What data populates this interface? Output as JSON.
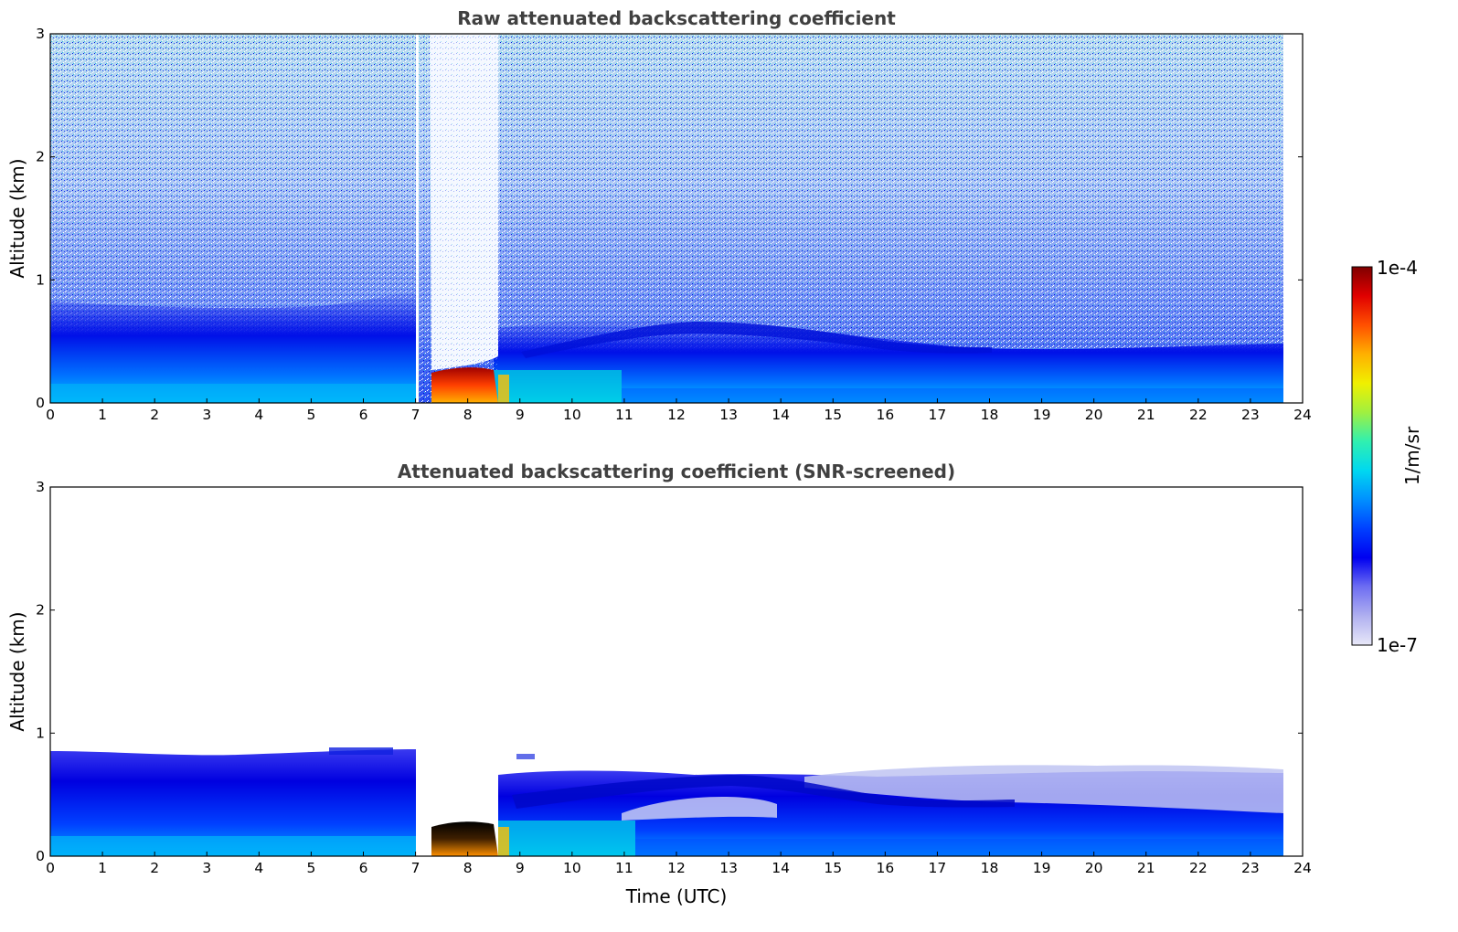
{
  "chart_data": [
    {
      "type": "heatmap",
      "title": "Raw attenuated backscattering coefficient",
      "xlabel": "",
      "ylabel": "Altitude (km)",
      "xlim": [
        0,
        24
      ],
      "ylim": [
        0,
        3
      ],
      "xticks": [
        0,
        1,
        2,
        3,
        4,
        5,
        6,
        7,
        8,
        9,
        10,
        11,
        12,
        13,
        14,
        15,
        16,
        17,
        18,
        19,
        20,
        21,
        22,
        23,
        24
      ],
      "yticks": [
        0,
        1,
        2,
        3
      ],
      "data_end_time": 23.6,
      "features": [
        {
          "name": "boundary-layer aerosol",
          "time_range": [
            0,
            23.6
          ],
          "altitude_top_km": 0.45
        },
        {
          "name": "fog/cloud layer",
          "time_range": [
            7.3,
            8.6
          ],
          "altitude_range_km": [
            0.0,
            0.27
          ]
        },
        {
          "name": "elevated aerosol layer",
          "time_range": [
            9.5,
            18.3
          ],
          "altitude_range_km": [
            0.3,
            0.65
          ]
        },
        {
          "name": "data gap",
          "time": 7.05
        }
      ]
    },
    {
      "type": "heatmap",
      "title": "Attenuated backscattering coefficient (SNR-screened)",
      "xlabel": "Time (UTC)",
      "ylabel": "Altitude (km)",
      "xlim": [
        0,
        24
      ],
      "ylim": [
        0,
        3
      ],
      "xticks": [
        0,
        1,
        2,
        3,
        4,
        5,
        6,
        7,
        8,
        9,
        10,
        11,
        12,
        13,
        14,
        15,
        16,
        17,
        18,
        19,
        20,
        21,
        22,
        23,
        24
      ],
      "yticks": [
        0,
        1,
        2,
        3
      ],
      "data_end_time": 23.6,
      "screened_top_km": 0.85
    }
  ],
  "colorbar": {
    "label": "1/m/sr",
    "max_label": "1e-4",
    "min_label": "1e-7",
    "scale": "log",
    "range": [
      1e-07,
      0.0001
    ],
    "colors": [
      "#e8e8f8",
      "#b0b0f0",
      "#6e6ef2",
      "#0000f0",
      "#0040ff",
      "#0090ff",
      "#00d8f0",
      "#30f0b0",
      "#a0f040",
      "#f0f000",
      "#ffb000",
      "#ff5000",
      "#e00000",
      "#800000"
    ]
  }
}
